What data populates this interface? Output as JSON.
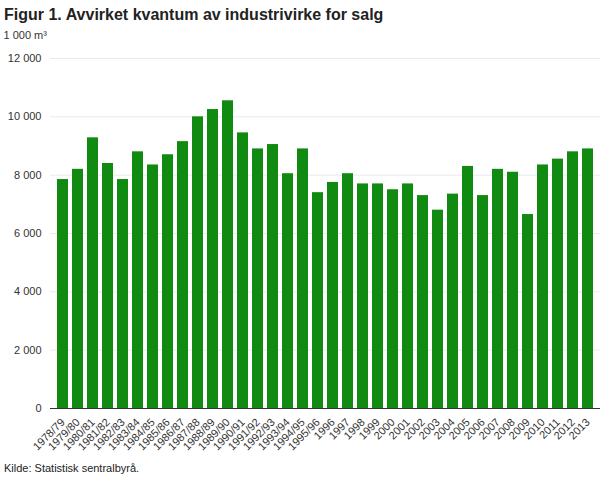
{
  "chart_data": {
    "type": "bar",
    "title": "Figur 1. Avvirket kvantum av industrivirke for salg",
    "y_label": "1 000 m³",
    "caption": "Kilde: Statistisk sentralbyrå.",
    "categories": [
      "1978/79",
      "1979/80",
      "1980/81",
      "1981/82",
      "1982/83",
      "1983/84",
      "1984/85",
      "1985/86",
      "1986/87",
      "1987/88",
      "1988/89",
      "1989/90",
      "1990/91",
      "1991/92",
      "1992/93",
      "1993/94",
      "1994/95",
      "1995/96",
      "1996",
      "1997",
      "1998",
      "1999",
      "2000",
      "2001",
      "2002",
      "2003",
      "2004",
      "2005",
      "2006",
      "2007",
      "2008",
      "2009",
      "2010",
      "2011",
      "2012",
      "2013"
    ],
    "values": [
      7850,
      8200,
      9280,
      8400,
      7850,
      8800,
      8350,
      8700,
      9150,
      10000,
      10250,
      10550,
      9450,
      8900,
      9050,
      8050,
      8900,
      7400,
      7750,
      8050,
      7700,
      7700,
      7500,
      7700,
      7300,
      6800,
      7350,
      8300,
      7300,
      8200,
      8100,
      6650,
      8350,
      8550,
      8800,
      8900
    ],
    "color": "#108a10",
    "ylim": [
      0,
      12000
    ],
    "yticks": [
      0,
      {
        "value": 2000,
        "label": "2 000"
      },
      {
        "value": 4000,
        "label": "4 000"
      },
      {
        "value": 6000,
        "label": "6 000"
      },
      {
        "value": 8000,
        "label": "8 000"
      },
      {
        "value": 10000,
        "label": "10 000"
      },
      {
        "value": 12000,
        "label": "12 000"
      }
    ],
    "grid": true
  }
}
